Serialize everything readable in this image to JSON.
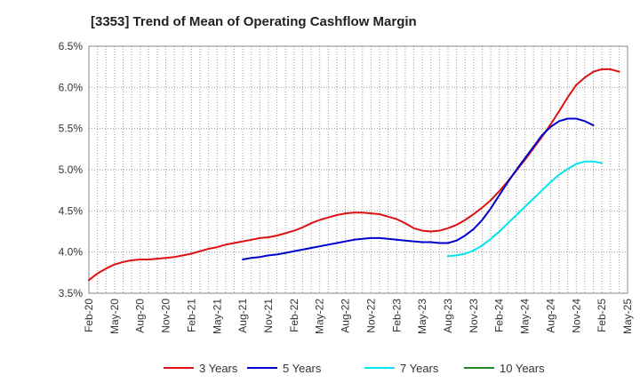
{
  "chart_data": {
    "type": "line",
    "title": "[3353]  Trend of Mean of Operating Cashflow Margin",
    "xlabel": "",
    "ylabel": "",
    "ylim": [
      3.5,
      6.5
    ],
    "y_ticks": [
      "3.5%",
      "4.0%",
      "4.5%",
      "5.0%",
      "5.5%",
      "6.0%",
      "6.5%"
    ],
    "y_tick_values": [
      3.5,
      4.0,
      4.5,
      5.0,
      5.5,
      6.0,
      6.5
    ],
    "x_ticks": [
      "Feb-20",
      "May-20",
      "Aug-20",
      "Nov-20",
      "Feb-21",
      "May-21",
      "Aug-21",
      "Nov-21",
      "Feb-22",
      "May-22",
      "Aug-22",
      "Nov-22",
      "Feb-23",
      "May-23",
      "Aug-23",
      "Nov-23",
      "Feb-24",
      "May-24",
      "Aug-24",
      "Nov-24",
      "Feb-25",
      "May-25"
    ],
    "x_range_months": [
      0,
      63
    ],
    "grid": true,
    "legend_position": "bottom",
    "series": [
      {
        "name": "3 Years",
        "color": "#dd1111",
        "start_month": 0,
        "values": [
          3.66,
          3.74,
          3.8,
          3.85,
          3.88,
          3.9,
          3.91,
          3.91,
          3.92,
          3.93,
          3.94,
          3.96,
          3.98,
          4.01,
          4.04,
          4.06,
          4.09,
          4.11,
          4.13,
          4.15,
          4.17,
          4.18,
          4.2,
          4.23,
          4.26,
          4.3,
          4.35,
          4.39,
          4.42,
          4.45,
          4.47,
          4.48,
          4.48,
          4.47,
          4.46,
          4.43,
          4.4,
          4.35,
          4.29,
          4.26,
          4.25,
          4.26,
          4.29,
          4.33,
          4.39,
          4.46,
          4.54,
          4.63,
          4.74,
          4.86,
          4.99,
          5.12,
          5.26,
          5.4,
          5.55,
          5.71,
          5.88,
          6.03,
          6.12,
          6.19,
          6.22,
          6.22,
          6.19
        ]
      },
      {
        "name": "5 Years",
        "color": "#0000cc",
        "start_month": 18,
        "values": [
          3.91,
          3.93,
          3.94,
          3.96,
          3.97,
          3.99,
          4.01,
          4.03,
          4.05,
          4.07,
          4.09,
          4.11,
          4.13,
          4.15,
          4.16,
          4.17,
          4.17,
          4.16,
          4.15,
          4.14,
          4.13,
          4.12,
          4.12,
          4.11,
          4.11,
          4.14,
          4.2,
          4.28,
          4.39,
          4.53,
          4.69,
          4.85,
          5.0,
          5.14,
          5.28,
          5.42,
          5.52,
          5.59,
          5.62,
          5.62,
          5.59,
          5.54
        ]
      },
      {
        "name": "7 Years",
        "color": "#00e5ee",
        "start_month": 42,
        "values": [
          3.95,
          3.96,
          3.98,
          4.02,
          4.08,
          4.16,
          4.25,
          4.35,
          4.45,
          4.55,
          4.65,
          4.75,
          4.85,
          4.94,
          5.01,
          5.07,
          5.1,
          5.1,
          5.08
        ]
      },
      {
        "name": "10 Years",
        "color": "#228822",
        "start_month": 0,
        "values": []
      }
    ]
  }
}
